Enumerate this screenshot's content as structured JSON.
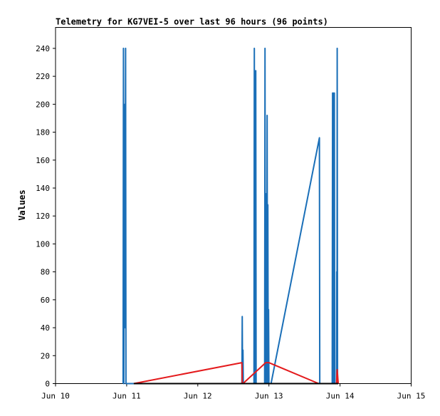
{
  "chart_data": {
    "type": "line",
    "title": "Telemetry for KG7VEI-5 over last 96 hours (96 points)",
    "xlabel": "",
    "ylabel": "Values",
    "xlim": [
      0,
      5
    ],
    "ylim": [
      0,
      255
    ],
    "x_ticks": [
      {
        "value": 0,
        "label": "Jun 10"
      },
      {
        "value": 1,
        "label": "Jun 11"
      },
      {
        "value": 2,
        "label": "Jun 12"
      },
      {
        "value": 3,
        "label": "Jun 13"
      },
      {
        "value": 4,
        "label": "Jun 14"
      },
      {
        "value": 5,
        "label": "Jun 15"
      }
    ],
    "y_ticks": [
      0,
      20,
      40,
      60,
      80,
      100,
      120,
      140,
      160,
      180,
      200,
      220,
      240
    ],
    "grid": false,
    "legend": "none",
    "series": [
      {
        "color": "#1a6fb8",
        "points": [
          [
            0.95,
            0
          ],
          [
            0.955,
            240
          ],
          [
            0.96,
            0
          ],
          [
            0.965,
            120
          ],
          [
            0.97,
            40
          ],
          [
            0.975,
            200
          ],
          [
            0.98,
            120
          ],
          [
            0.985,
            240
          ],
          [
            0.99,
            0
          ],
          [
            2.62,
            0
          ],
          [
            2.625,
            48
          ],
          [
            2.63,
            0
          ],
          [
            2.635,
            24
          ],
          [
            2.64,
            0
          ],
          [
            2.79,
            0
          ],
          [
            2.795,
            240
          ],
          [
            2.8,
            0
          ],
          [
            2.81,
            80
          ],
          [
            2.815,
            224
          ],
          [
            2.82,
            0
          ],
          [
            2.94,
            0
          ],
          [
            2.945,
            240
          ],
          [
            2.95,
            0
          ],
          [
            2.955,
            120
          ],
          [
            2.96,
            40
          ],
          [
            2.965,
            136
          ],
          [
            2.97,
            0
          ],
          [
            2.975,
            192
          ],
          [
            2.98,
            0
          ],
          [
            2.985,
            128
          ],
          [
            2.99,
            0
          ],
          [
            2.995,
            53
          ],
          [
            3.0,
            0
          ],
          [
            3.03,
            0
          ],
          [
            3.71,
            176
          ],
          [
            3.715,
            0
          ],
          [
            3.89,
            0
          ],
          [
            3.895,
            208
          ],
          [
            3.9,
            0
          ],
          [
            3.905,
            208
          ],
          [
            3.91,
            0
          ],
          [
            3.92,
            208
          ],
          [
            3.925,
            0
          ],
          [
            3.95,
            0
          ],
          [
            3.953,
            80
          ],
          [
            3.957,
            0
          ],
          [
            3.96,
            240
          ],
          [
            3.965,
            0
          ]
        ]
      },
      {
        "color": "#e41a1c",
        "points": [
          [
            1.1,
            0
          ],
          [
            2.62,
            15
          ],
          [
            2.625,
            0
          ],
          [
            2.635,
            0
          ],
          [
            2.955,
            15
          ],
          [
            3.0,
            15
          ],
          [
            3.7,
            0
          ],
          [
            3.95,
            0
          ],
          [
            3.96,
            10
          ],
          [
            3.97,
            3
          ],
          [
            3.975,
            0
          ]
        ]
      },
      {
        "color": "#000000",
        "points": [
          [
            1.1,
            0
          ],
          [
            3.975,
            0
          ]
        ]
      }
    ]
  }
}
